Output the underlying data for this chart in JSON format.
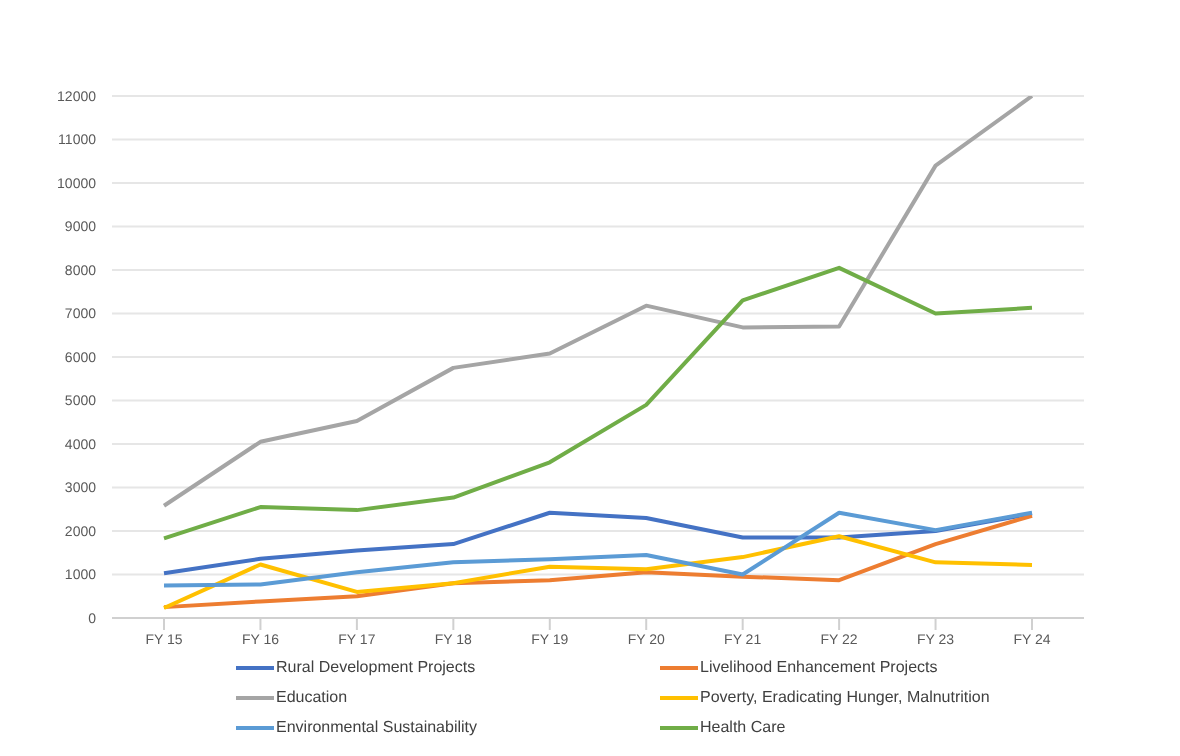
{
  "chart_data": {
    "type": "line",
    "categories": [
      "FY 15",
      "FY 16",
      "FY 17",
      "FY 18",
      "FY 19",
      "FY 20",
      "FY 21",
      "FY 22",
      "FY 23",
      "FY 24"
    ],
    "series": [
      {
        "name": "Rural Development Projects",
        "color": "#4472c4",
        "values": [
          1030,
          1360,
          1550,
          1700,
          2420,
          2300,
          1850,
          1850,
          2000,
          2400
        ]
      },
      {
        "name": "Livelihood Enhancement Projects",
        "color": "#ed7d31",
        "values": [
          250,
          380,
          500,
          800,
          870,
          1050,
          950,
          870,
          1700,
          2350
        ]
      },
      {
        "name": "Education",
        "color": "#a5a5a5",
        "values": [
          2580,
          4050,
          4530,
          5750,
          6080,
          7180,
          6680,
          6700,
          10400,
          12000
        ]
      },
      {
        "name": "Poverty, Eradicating Hunger, Malnutrition",
        "color": "#ffc000",
        "values": [
          230,
          1230,
          600,
          800,
          1180,
          1120,
          1400,
          1880,
          1280,
          1220
        ]
      },
      {
        "name": "Environmental Sustainability",
        "color": "#5b9bd5",
        "values": [
          750,
          770,
          1050,
          1280,
          1350,
          1450,
          1000,
          2420,
          2020,
          2420
        ]
      },
      {
        "name": "Health Care",
        "color": "#70ad47",
        "values": [
          1830,
          2550,
          2480,
          2770,
          3580,
          4900,
          7300,
          8050,
          7000,
          7130
        ]
      }
    ],
    "ylim": [
      0,
      12000
    ],
    "yticks": [
      0,
      1000,
      2000,
      3000,
      4000,
      5000,
      6000,
      7000,
      8000,
      9000,
      10000,
      11000,
      12000
    ],
    "grid": "y",
    "legend": "bottom",
    "marker": "none",
    "line_style": "solid"
  }
}
